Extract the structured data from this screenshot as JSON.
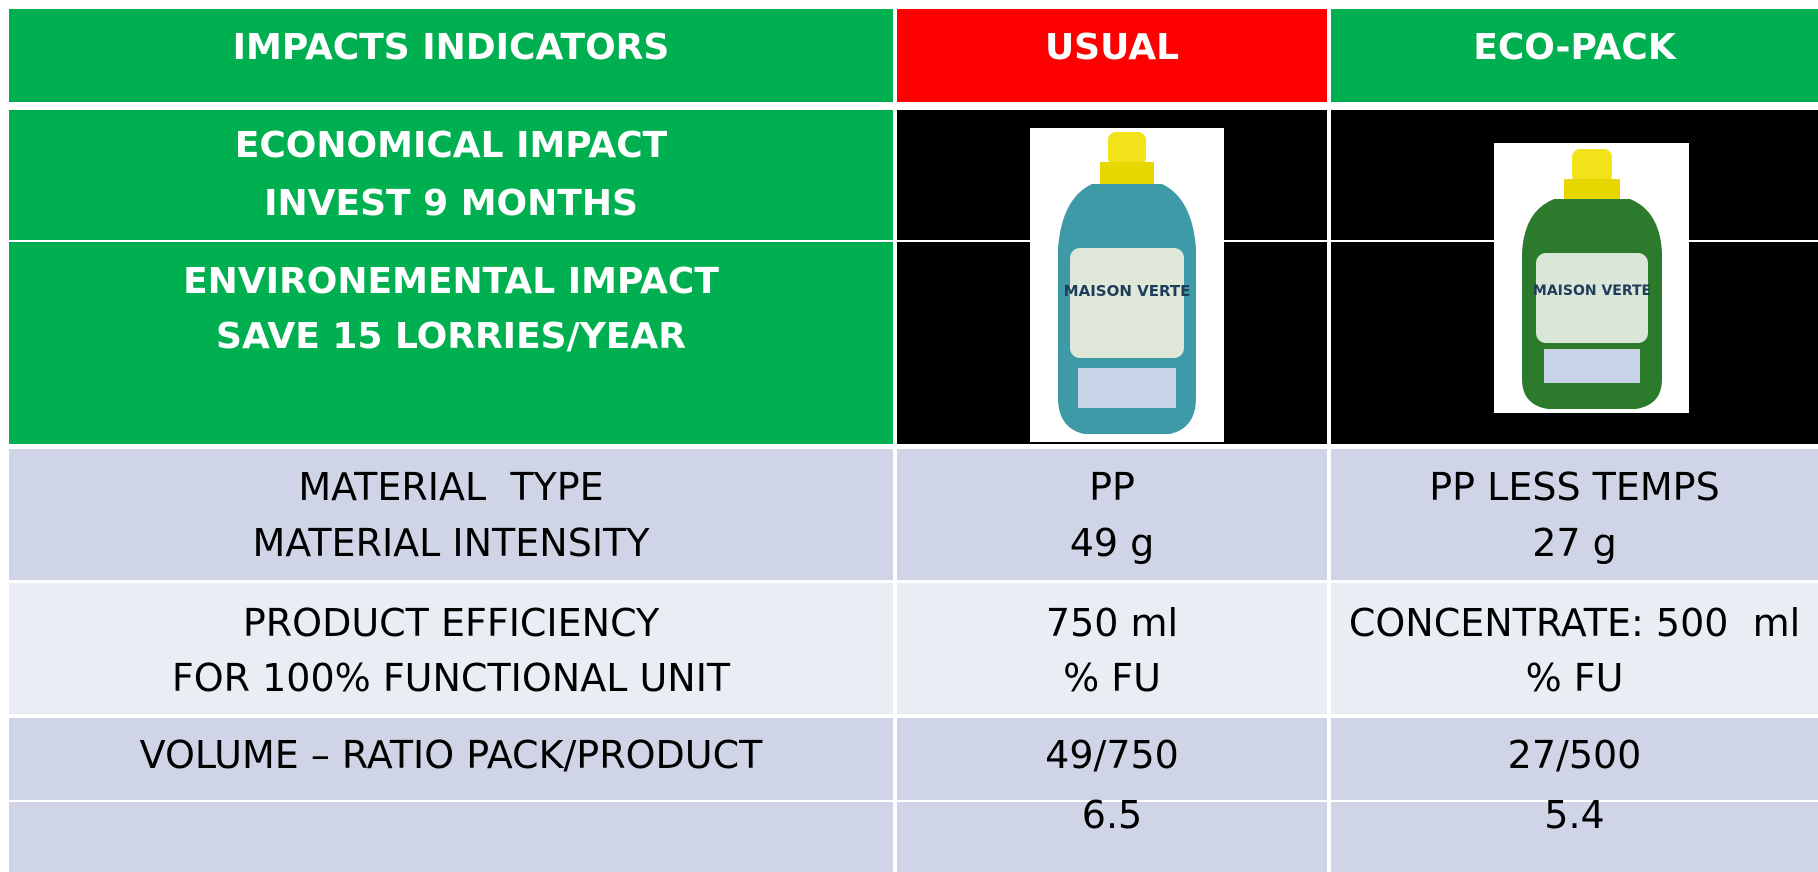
{
  "header": [
    "IMPACTS INDICATORS",
    "USUAL",
    "ECO-PACK"
  ],
  "impacts": [
    [
      "ECONOMICAL IMPACT",
      "INVEST 9 MONTHS"
    ],
    [
      "ENVIRONEMENTAL IMPACT",
      "SAVE 15 LORRIES/YEAR"
    ]
  ],
  "bottle_label": "MAISON VERTE",
  "rows": [
    [
      [
        "MATERIAL  TYPE",
        "MATERIAL INTENSITY"
      ],
      [
        "PP",
        "49 g"
      ],
      [
        "PP LESS TEMPS",
        "27 g"
      ]
    ],
    [
      [
        "PRODUCT EFFICIENCY",
        "FOR 100% FUNCTIONAL UNIT"
      ],
      [
        "750 ml",
        "% FU"
      ],
      [
        "CONCENTRATE: 500  ml",
        "% FU"
      ]
    ],
    [
      [
        "VOLUME – RATIO PACK/PRODUCT"
      ],
      [
        "49/750",
        "6.5"
      ],
      [
        "27/500",
        "5.4"
      ]
    ]
  ]
}
